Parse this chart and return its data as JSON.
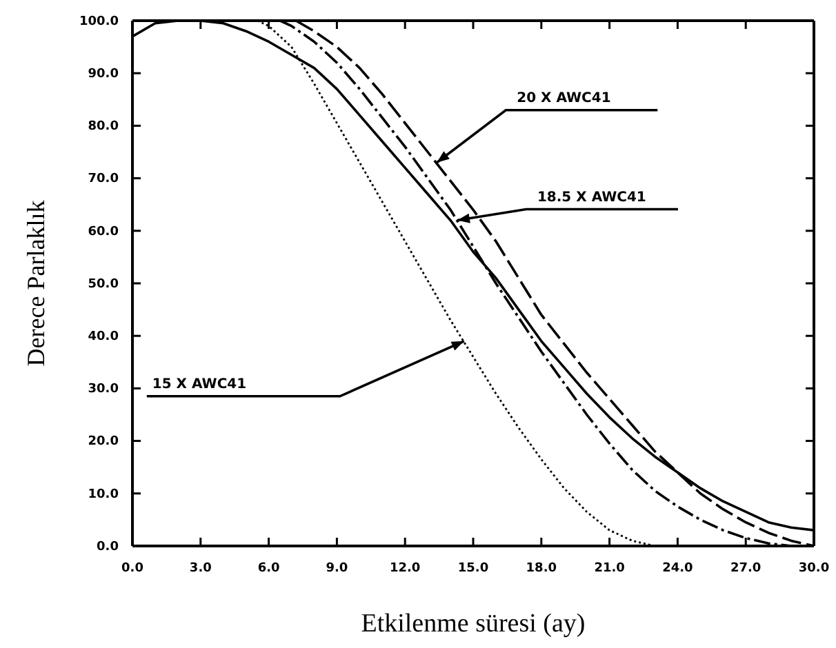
{
  "chart_data": {
    "type": "line",
    "xlabel": "Etkilenme süresi (ay)",
    "ylabel": "Derece Parlaklık",
    "xlim": [
      0,
      30
    ],
    "ylim": [
      0,
      100
    ],
    "xticks": [
      {
        "value": 0,
        "label": "0.0"
      },
      {
        "value": 3,
        "label": "3.0"
      },
      {
        "value": 6,
        "label": "6.0"
      },
      {
        "value": 9,
        "label": "9.0"
      },
      {
        "value": 12,
        "label": "12.0"
      },
      {
        "value": 15,
        "label": "15.0"
      },
      {
        "value": 18,
        "label": "18.0"
      },
      {
        "value": 21,
        "label": "21.0"
      },
      {
        "value": 24,
        "label": "24.0"
      },
      {
        "value": 27,
        "label": "27.0"
      },
      {
        "value": 30,
        "label": "30.0"
      }
    ],
    "yticks": [
      {
        "value": 0,
        "label": "0.0"
      },
      {
        "value": 10,
        "label": "10.0"
      },
      {
        "value": 20,
        "label": "20.0"
      },
      {
        "value": 30,
        "label": "30.0"
      },
      {
        "value": 40,
        "label": "40.0"
      },
      {
        "value": 50,
        "label": "50.0"
      },
      {
        "value": 60,
        "label": "60.0"
      },
      {
        "value": 70,
        "label": "70.0"
      },
      {
        "value": 80,
        "label": "80.0"
      },
      {
        "value": 90,
        "label": "90.0"
      },
      {
        "value": 100,
        "label": "100.0"
      }
    ],
    "grid": false,
    "marker": "none",
    "series": [
      {
        "color": "#000000",
        "line_style": "solid",
        "x": [
          0,
          1,
          2,
          3,
          4,
          5,
          6,
          7,
          8,
          9,
          10,
          11,
          12,
          13,
          14,
          15,
          16,
          17,
          18,
          19,
          20,
          21,
          22,
          23,
          24,
          25,
          26,
          27,
          28,
          29,
          30
        ],
        "values": [
          97,
          99.5,
          100,
          100,
          99.5,
          98,
          96,
          93.5,
          91,
          87,
          82,
          77,
          72,
          67,
          62,
          56,
          51,
          45,
          39,
          34,
          29,
          24.5,
          20.5,
          17,
          14,
          11,
          8.5,
          6.5,
          4.5,
          3.5,
          3
        ]
      },
      {
        "color": "#000000",
        "line_style": "dotted",
        "x": [
          5.5,
          6,
          7,
          8,
          9,
          10,
          11,
          12,
          13,
          14,
          15,
          16,
          17,
          18,
          19,
          20,
          21,
          22,
          23
        ],
        "values": [
          100,
          99,
          95,
          88,
          80.5,
          73,
          65.5,
          58,
          50.5,
          43,
          36,
          29,
          22.5,
          16.5,
          11,
          6.5,
          3,
          1,
          0
        ]
      },
      {
        "color": "#000000",
        "line_style": "dashdot",
        "x": [
          6.5,
          7,
          8,
          9,
          10,
          11,
          12,
          13,
          14,
          15,
          16,
          17,
          18,
          19,
          20,
          21,
          22,
          23,
          24,
          25,
          26,
          27,
          28,
          29
        ],
        "values": [
          100,
          99,
          96,
          92,
          87,
          81.5,
          76,
          70,
          64,
          57,
          50,
          43.5,
          37,
          31,
          25,
          19.5,
          14.5,
          10.5,
          7.5,
          5,
          3,
          1.5,
          0.5,
          0
        ]
      },
      {
        "color": "#000000",
        "line_style": "dashed",
        "x": [
          7.2,
          8,
          9,
          10,
          11,
          12,
          13,
          14,
          15,
          16,
          17,
          18,
          19,
          20,
          21,
          22,
          23,
          24,
          25,
          26,
          27,
          28,
          29,
          30
        ],
        "values": [
          100,
          98,
          95,
          91,
          86,
          80.5,
          75,
          69.5,
          64,
          58,
          51,
          44,
          38.5,
          33,
          28,
          23,
          18,
          14,
          10,
          7,
          4.5,
          2.5,
          1,
          0
        ]
      }
    ],
    "annotations": [
      {
        "text": "20 X AWC41",
        "x": 13.4,
        "y": 73
      },
      {
        "text": "18.5 X AWC41",
        "x": 14.3,
        "y": 62
      },
      {
        "text": "15 X AWC41",
        "x": 14.6,
        "y": 39
      }
    ]
  }
}
